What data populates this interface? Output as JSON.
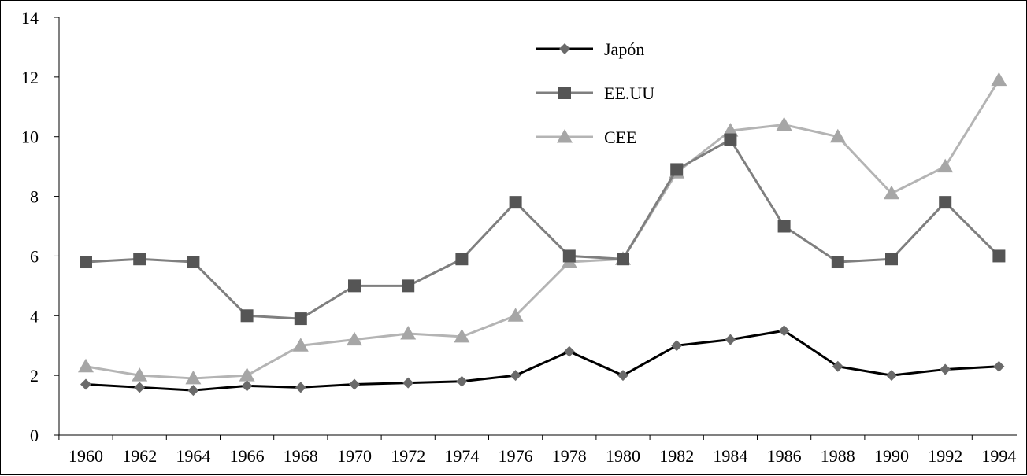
{
  "chart_data": {
    "type": "line",
    "title": "",
    "xlabel": "",
    "ylabel": "",
    "x": [
      1960,
      1962,
      1964,
      1966,
      1968,
      1970,
      1972,
      1974,
      1976,
      1978,
      1980,
      1982,
      1984,
      1986,
      1988,
      1990,
      1992,
      1994
    ],
    "x_tick_labels": [
      "1960",
      "1962",
      "1964",
      "1966",
      "1968",
      "1970",
      "1972",
      "1974",
      "1976",
      "1978",
      "1980",
      "1982",
      "1984",
      "1986",
      "1988",
      "1990",
      "1992",
      "1994"
    ],
    "ylim": [
      0,
      14
    ],
    "y_ticks": [
      0,
      2,
      4,
      6,
      8,
      10,
      12,
      14
    ],
    "grid": false,
    "legend_position": "top-center",
    "series": [
      {
        "name": "Japón",
        "marker": "diamond",
        "color": "#000000",
        "marker_color": "#6a6a6a",
        "values": [
          1.7,
          1.6,
          1.5,
          1.65,
          1.6,
          1.7,
          1.75,
          1.8,
          2.0,
          2.8,
          2.0,
          3.0,
          3.2,
          3.5,
          2.3,
          2.0,
          2.2,
          2.3
        ]
      },
      {
        "name": "EE.UU",
        "marker": "square",
        "color": "#7f7f7f",
        "marker_color": "#555555",
        "values": [
          5.8,
          5.9,
          5.8,
          4.0,
          3.9,
          5.0,
          5.0,
          5.9,
          7.8,
          6.0,
          5.9,
          8.9,
          9.9,
          7.0,
          5.8,
          5.9,
          7.8,
          6.0
        ]
      },
      {
        "name": "CEE",
        "marker": "triangle",
        "color": "#b4b4b4",
        "marker_color": "#a6a6a6",
        "values": [
          2.3,
          2.0,
          1.9,
          2.0,
          3.0,
          3.2,
          3.4,
          3.3,
          4.0,
          5.8,
          5.9,
          8.8,
          10.2,
          10.4,
          10.0,
          8.1,
          9.0,
          11.9
        ]
      }
    ]
  }
}
